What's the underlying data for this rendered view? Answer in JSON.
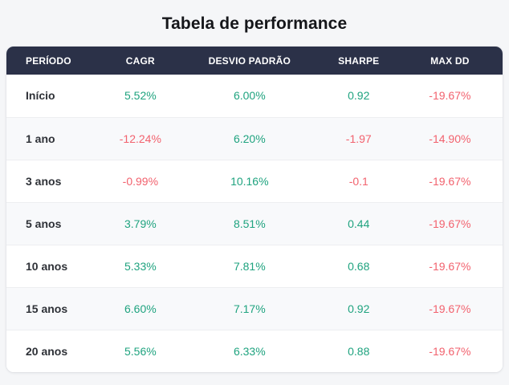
{
  "page": {
    "title": "Tabela de performance"
  },
  "table": {
    "columns": [
      "PERÍODO",
      "CAGR",
      "DESVIO PADRÃO",
      "SHARPE",
      "MAX DD"
    ],
    "rows": [
      {
        "period": "Início",
        "cagr": "5.52%",
        "desvio_padrao": "6.00%",
        "sharpe": "0.92",
        "max_dd": "-19.67%"
      },
      {
        "period": "1 ano",
        "cagr": "-12.24%",
        "desvio_padrao": "6.20%",
        "sharpe": "-1.97",
        "max_dd": "-14.90%"
      },
      {
        "period": "3 anos",
        "cagr": "-0.99%",
        "desvio_padrao": "10.16%",
        "sharpe": "-0.1",
        "max_dd": "-19.67%"
      },
      {
        "period": "5 anos",
        "cagr": "3.79%",
        "desvio_padrao": "8.51%",
        "sharpe": "0.44",
        "max_dd": "-19.67%"
      },
      {
        "period": "10 anos",
        "cagr": "5.33%",
        "desvio_padrao": "7.81%",
        "sharpe": "0.68",
        "max_dd": "-19.67%"
      },
      {
        "period": "15 anos",
        "cagr": "6.60%",
        "desvio_padrao": "7.17%",
        "sharpe": "0.92",
        "max_dd": "-19.67%"
      },
      {
        "period": "20 anos",
        "cagr": "5.56%",
        "desvio_padrao": "6.33%",
        "sharpe": "0.88",
        "max_dd": "-19.67%"
      }
    ]
  },
  "colors": {
    "positive_value": "#1fa37f",
    "negative_value": "#f2626e",
    "header_background": "#2b3148",
    "header_text": "#ffffff",
    "stripe_background": "#f8f9fb",
    "page_background": "#f5f6f8",
    "card_background": "#ffffff"
  }
}
